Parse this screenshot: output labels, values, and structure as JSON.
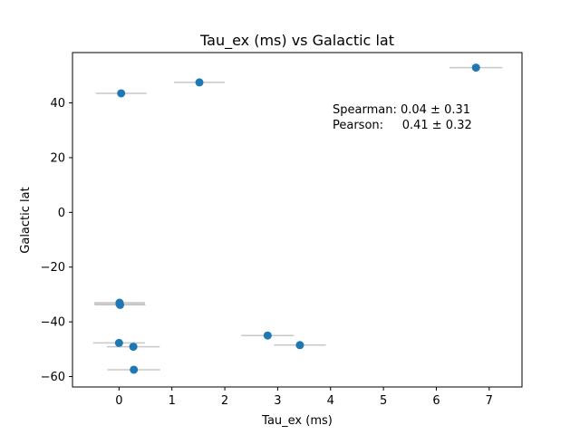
{
  "chart_data": {
    "type": "scatter",
    "title": "Tau_ex (ms) vs Galactic lat",
    "xlabel": "Tau_ex (ms)",
    "ylabel": "Galactic lat",
    "xlim": [
      -0.88,
      7.62
    ],
    "ylim": [
      -63.8,
      58.4
    ],
    "xticks": [
      0,
      1,
      2,
      3,
      4,
      5,
      6,
      7
    ],
    "yticks": [
      -60,
      -40,
      -20,
      0,
      20,
      40
    ],
    "grid": false,
    "legend": "none",
    "colors": {
      "marker": "#1f77b4",
      "errorbar": "#c8c8c8"
    },
    "points": [
      {
        "x": 0.04,
        "y": 43.5,
        "xerr": 0.48
      },
      {
        "x": 1.52,
        "y": 47.5,
        "xerr": 0.48
      },
      {
        "x": 6.75,
        "y": 52.9,
        "xerr": 0.5
      },
      {
        "x": 0.01,
        "y": -33.0,
        "xerr": 0.48
      },
      {
        "x": 0.01,
        "y": -33.5,
        "xerr": 0.48
      },
      {
        "x": 0.02,
        "y": -33.8,
        "xerr": 0.48
      },
      {
        "x": 0.0,
        "y": -47.7,
        "xerr": 0.49
      },
      {
        "x": 0.27,
        "y": -49.1,
        "xerr": 0.5
      },
      {
        "x": 0.28,
        "y": -57.5,
        "xerr": 0.5
      },
      {
        "x": 2.81,
        "y": -45.0,
        "xerr": 0.5
      },
      {
        "x": 3.42,
        "y": -48.5,
        "xerr": 0.49
      }
    ],
    "annotations": {
      "spearman": "Spearman: 0.04 ± 0.31",
      "pearson": "Pearson:     0.41 ± 0.32"
    }
  }
}
